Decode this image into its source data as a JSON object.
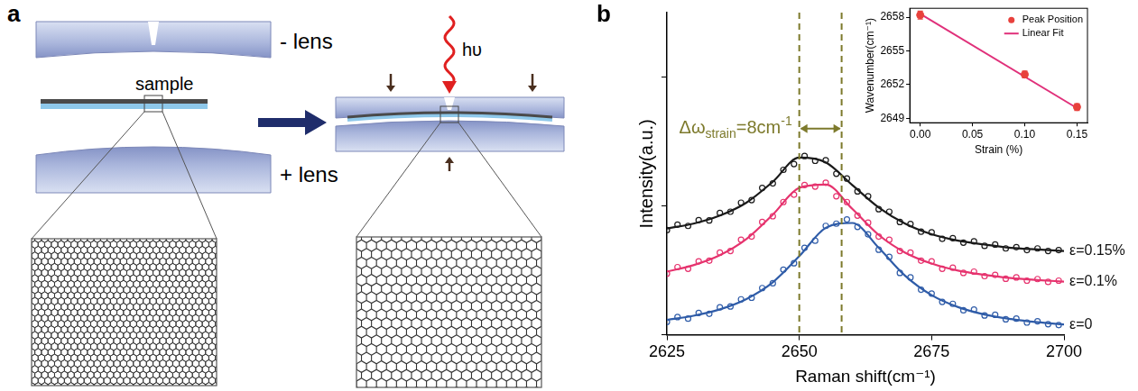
{
  "diagram": {
    "panel_label": "a",
    "top_lens": "- lens",
    "sample": "sample",
    "bottom_lens": "+ lens",
    "light": "hυ"
  },
  "chart_data": [
    {
      "type": "scatter",
      "panel_label": "b",
      "x_label": "Raman shift(cm⁻¹)",
      "y_label": "Intensity(a.u.)",
      "xlim": [
        2625,
        2700
      ],
      "xticks": [
        2625,
        2650,
        2675,
        2700
      ],
      "ylim": [
        0,
        10
      ],
      "yticks": [
        0,
        4,
        8
      ],
      "tick_labels": "x",
      "grid": false,
      "annotation": {
        "parts": [
          {
            "text": "Δω"
          },
          {
            "text": "strain",
            "sub": true
          },
          {
            "text": "=8cm"
          },
          {
            "text": "-1",
            "sup": true
          }
        ],
        "x": [
          2650,
          2658
        ]
      },
      "x": [
        2625,
        2627,
        2629,
        2631,
        2633,
        2635,
        2637,
        2639,
        2641,
        2643,
        2645,
        2647,
        2649,
        2651,
        2653,
        2655,
        2657,
        2659,
        2661,
        2663,
        2665,
        2667,
        2669,
        2671,
        2673,
        2675,
        2677,
        2679,
        2681,
        2683,
        2685,
        2687,
        2689,
        2691,
        2693,
        2695,
        2697,
        2699
      ],
      "fit_x": [
        2625,
        2630,
        2635,
        2640,
        2645,
        2650,
        2655,
        2660,
        2665,
        2670,
        2675,
        2680,
        2685,
        2690,
        2695,
        2700
      ],
      "series": [
        {
          "name": "ε=0.15%",
          "color": "#1a1a1a",
          "marker": "open_circle",
          "values": [
            3.25,
            3.42,
            3.38,
            3.56,
            3.55,
            3.78,
            3.82,
            4.1,
            4.18,
            4.56,
            4.7,
            5.12,
            5.3,
            5.55,
            5.4,
            5.42,
            5.0,
            4.85,
            4.45,
            4.3,
            3.9,
            3.82,
            3.5,
            3.44,
            3.2,
            3.18,
            2.98,
            3.0,
            2.86,
            2.9,
            2.76,
            2.8,
            2.68,
            2.72,
            2.63,
            2.68,
            2.6,
            2.63
          ],
          "fit_values": [
            3.3,
            3.45,
            3.7,
            4.1,
            4.75,
            5.5,
            5.35,
            4.65,
            3.95,
            3.45,
            3.12,
            2.92,
            2.8,
            2.7,
            2.65,
            2.6
          ]
        },
        {
          "name": "ε=0.1%",
          "color": "#e6336e",
          "marker": "open_circle",
          "values": [
            1.9,
            2.1,
            2.05,
            2.28,
            2.3,
            2.55,
            2.6,
            2.95,
            3.05,
            3.5,
            3.68,
            4.12,
            4.35,
            4.65,
            4.6,
            4.72,
            4.3,
            4.12,
            3.7,
            3.48,
            3.05,
            2.95,
            2.6,
            2.55,
            2.3,
            2.28,
            2.05,
            2.08,
            1.92,
            1.96,
            1.82,
            1.86,
            1.74,
            1.78,
            1.68,
            1.73,
            1.64,
            1.68
          ],
          "fit_values": [
            1.96,
            2.16,
            2.47,
            2.97,
            3.73,
            4.56,
            4.66,
            3.91,
            3.1,
            2.55,
            2.21,
            1.99,
            1.86,
            1.76,
            1.7,
            1.65
          ]
        },
        {
          "name": "ε=0",
          "color": "#2f5ca8",
          "marker": "open_circle",
          "values": [
            0.4,
            0.55,
            0.5,
            0.68,
            0.65,
            0.85,
            0.88,
            1.1,
            1.15,
            1.45,
            1.6,
            2.02,
            2.22,
            2.7,
            2.92,
            3.38,
            3.45,
            3.58,
            3.35,
            3.12,
            2.64,
            2.42,
            1.92,
            1.78,
            1.4,
            1.28,
            1.02,
            0.96,
            0.76,
            0.78,
            0.6,
            0.62,
            0.48,
            0.5,
            0.38,
            0.42,
            0.33,
            0.3
          ],
          "fit_values": [
            0.46,
            0.59,
            0.79,
            1.11,
            1.63,
            2.44,
            3.32,
            3.47,
            2.7,
            1.83,
            1.23,
            0.86,
            0.63,
            0.49,
            0.39,
            0.32
          ]
        }
      ]
    },
    {
      "type": "scatter",
      "x_label": "Strain (%)",
      "y_label": "Wavenumber(cm⁻¹)",
      "xlim": [
        -0.01,
        0.16
      ],
      "xticks": [
        {
          "value": 0,
          "label": "0.00"
        },
        0.05,
        {
          "value": 0.1,
          "label": "0.10"
        },
        0.15
      ],
      "ylim": [
        2648.6,
        2658.8
      ],
      "yticks": [
        2649,
        2652,
        2655,
        2658
      ],
      "grid": false,
      "legend": "top-right",
      "series": [
        {
          "name": "Peak Position",
          "color": "#e8413c",
          "marker": "circle",
          "x": [
            0,
            0.1,
            0.15
          ],
          "values": [
            2658.2,
            2652.9,
            2650.0
          ],
          "errors": [
            0.35,
            0.3,
            0.3
          ]
        },
        {
          "name": "Linear Fit",
          "color": "#e0307a",
          "type": "line",
          "line_style": "solid",
          "x": [
            0,
            0.15
          ],
          "values": [
            2658.3,
            2649.9
          ]
        }
      ]
    }
  ]
}
